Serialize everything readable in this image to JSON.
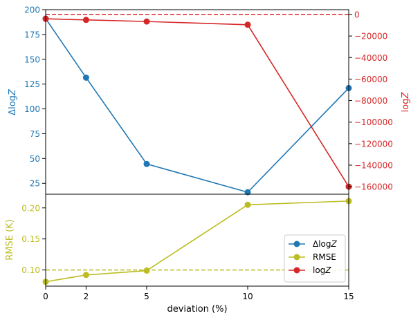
{
  "colors": {
    "blue": "#1f77b4",
    "red": "#d62728",
    "olive": "#bcbd22",
    "axis": "#000000"
  },
  "chart_data": [
    {
      "type": "line",
      "panel": "top",
      "x": [
        0,
        2,
        5,
        10,
        15
      ],
      "xlim": [
        0,
        15
      ],
      "y_left": {
        "label_prefix": "Δlog",
        "label_italic": "Z",
        "lim": [
          14,
          200
        ],
        "ticks": [
          25,
          50,
          75,
          100,
          125,
          150,
          175,
          200
        ],
        "tick_labels": [
          "25",
          "50",
          "75",
          "100",
          "125",
          "150",
          "175",
          "200"
        ],
        "color": "#1f77b4"
      },
      "y_right": {
        "label_prefix": "log",
        "label_italic": "Z",
        "lim": [
          -167000,
          4500
        ],
        "ticks": [
          0,
          -20000,
          -40000,
          -60000,
          -80000,
          -100000,
          -120000,
          -140000,
          -160000
        ],
        "tick_labels": [
          "0",
          "−20000",
          "−40000",
          "−60000",
          "−80000",
          "−100000",
          "−120000",
          "−140000",
          "−160000"
        ],
        "color": "#d62728"
      },
      "series": [
        {
          "key": "dlogz",
          "axis": "left",
          "color": "#1f77b4",
          "values": [
            191,
            131.5,
            44.5,
            16,
            121
          ],
          "marker": "circle"
        },
        {
          "key": "logz",
          "axis": "right",
          "color": "#d62728",
          "values": [
            -4000,
            -5000,
            -6500,
            -9500,
            -160000
          ],
          "marker": "circle"
        }
      ],
      "reference_lines": [
        {
          "axis": "right",
          "value": 0,
          "color": "#d62728",
          "style": "dashed"
        }
      ]
    },
    {
      "type": "line",
      "panel": "bottom",
      "x": [
        0,
        2,
        5,
        10,
        15
      ],
      "xlim": [
        0,
        15
      ],
      "xticks": [
        0,
        2,
        5,
        10,
        15
      ],
      "xtick_labels": [
        "0",
        "2",
        "5",
        "10",
        "15"
      ],
      "xlabel": "deviation (%)",
      "y_left": {
        "label": "RMSE (K)",
        "lim": [
          0.074,
          0.222
        ],
        "ticks": [
          0.1,
          0.15,
          0.2
        ],
        "tick_labels": [
          "0.10",
          "0.15",
          "0.20"
        ],
        "color": "#bcbd22"
      },
      "series": [
        {
          "key": "rmse",
          "axis": "left",
          "color": "#bcbd22",
          "values": [
            0.081,
            0.092,
            0.099,
            0.205,
            0.211
          ],
          "marker": "circle"
        }
      ],
      "reference_lines": [
        {
          "axis": "left",
          "value": 0.1,
          "color": "#bcbd22",
          "style": "dashed"
        }
      ],
      "legend": {
        "placement": "lower-right",
        "entries": [
          {
            "label_prefix": "Δlog",
            "label_italic": "Z",
            "color": "#1f77b4"
          },
          {
            "label_prefix": "RMSE",
            "label_italic": "",
            "color": "#bcbd22"
          },
          {
            "label_prefix": "log",
            "label_italic": "Z",
            "color": "#d62728"
          }
        ]
      }
    }
  ]
}
